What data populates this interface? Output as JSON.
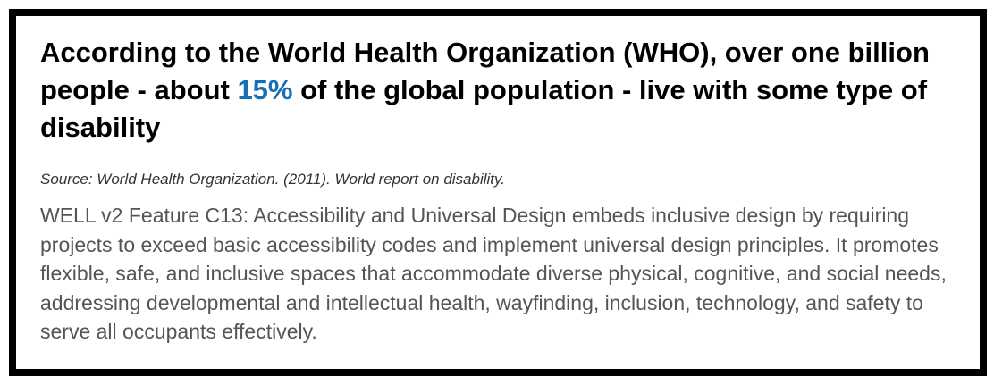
{
  "headline": {
    "before": "According to the World Health Organization (WHO), over one billion people - about ",
    "highlight": "15%",
    "after": " of the global population - live with some type of disability"
  },
  "source": "Source: World Health Organization. (2011). World report on disability.",
  "body": "WELL v2 Feature C13: Accessibility and Universal Design embeds inclusive design by requiring projects to exceed basic accessibility codes and implement universal design principles. It promotes flexible, safe, and inclusive spaces that accommodate diverse physical, cognitive, and social needs, addressing developmental and intellectual health, wayfinding, inclusion, technology, and safety to serve all occupants effectively.",
  "colors": {
    "accent": "#1670b6",
    "border": "#000000",
    "body_text": "#555555"
  }
}
